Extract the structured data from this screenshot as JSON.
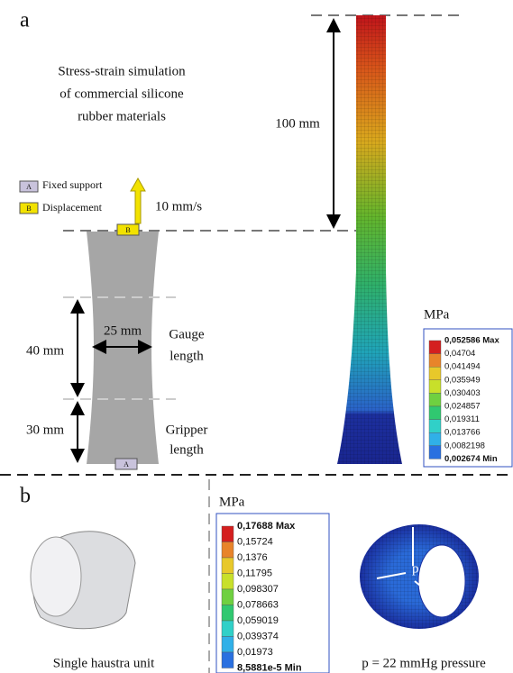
{
  "panel_a": {
    "label": "a",
    "caption": [
      "Stress-strain simulation",
      "of commercial silicone",
      "rubber materials"
    ],
    "legend": [
      {
        "key": "A",
        "text": "Fixed support"
      },
      {
        "key": "B",
        "text": "Displacement"
      }
    ],
    "speed": "10 mm/s",
    "top_key": "B",
    "bottom_key": "A",
    "dim_length": "100 mm",
    "dim_width": "25 mm",
    "dim_gauge": "40 mm",
    "dim_gripper": "30 mm",
    "gauge_label": [
      "Gauge",
      "length"
    ],
    "gripper_label": [
      "Gripper",
      "length"
    ],
    "scale": {
      "unit": "MPa",
      "labels": [
        "0,052586 Max",
        "0,04704",
        "0,041494",
        "0,035949",
        "0,030403",
        "0,024857",
        "0,019311",
        "0,013766",
        "0,0082198",
        "0,002674 Min"
      ]
    }
  },
  "panel_b": {
    "label": "b",
    "left_caption": "Single haustra unit",
    "right_caption": "p = 22 mmHg pressure",
    "pressure_label": "p",
    "scale": {
      "unit": "MPa",
      "labels": [
        "0,17688 Max",
        "0,15724",
        "0,1376",
        "0,11795",
        "0,098307",
        "0,078663",
        "0,059019",
        "0,039374",
        "0,01973",
        "8,5881e-5 Min"
      ]
    }
  }
}
